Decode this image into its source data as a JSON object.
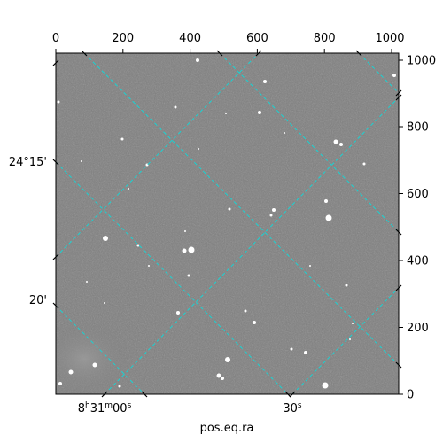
{
  "image": {
    "subject": "grayscale astronomical star field with WCS coordinate grid overlay",
    "grid_color": "#19d3d3",
    "background_color": "#7e7e7e"
  },
  "pixel_axis": {
    "top_ticks": [
      "0",
      "200",
      "400",
      "600",
      "800",
      "1000"
    ],
    "right_ticks": [
      "0",
      "200",
      "400",
      "600",
      "800",
      "1000"
    ]
  },
  "world_axis": {
    "xlabel": "pos.eq.ra",
    "ra_ticks": [
      {
        "h": "8",
        "m": "31",
        "s": "00",
        "label": "8h31m00s"
      },
      {
        "label": "30s"
      }
    ],
    "dec_ticks": [
      "24°15'",
      "20'"
    ]
  }
}
